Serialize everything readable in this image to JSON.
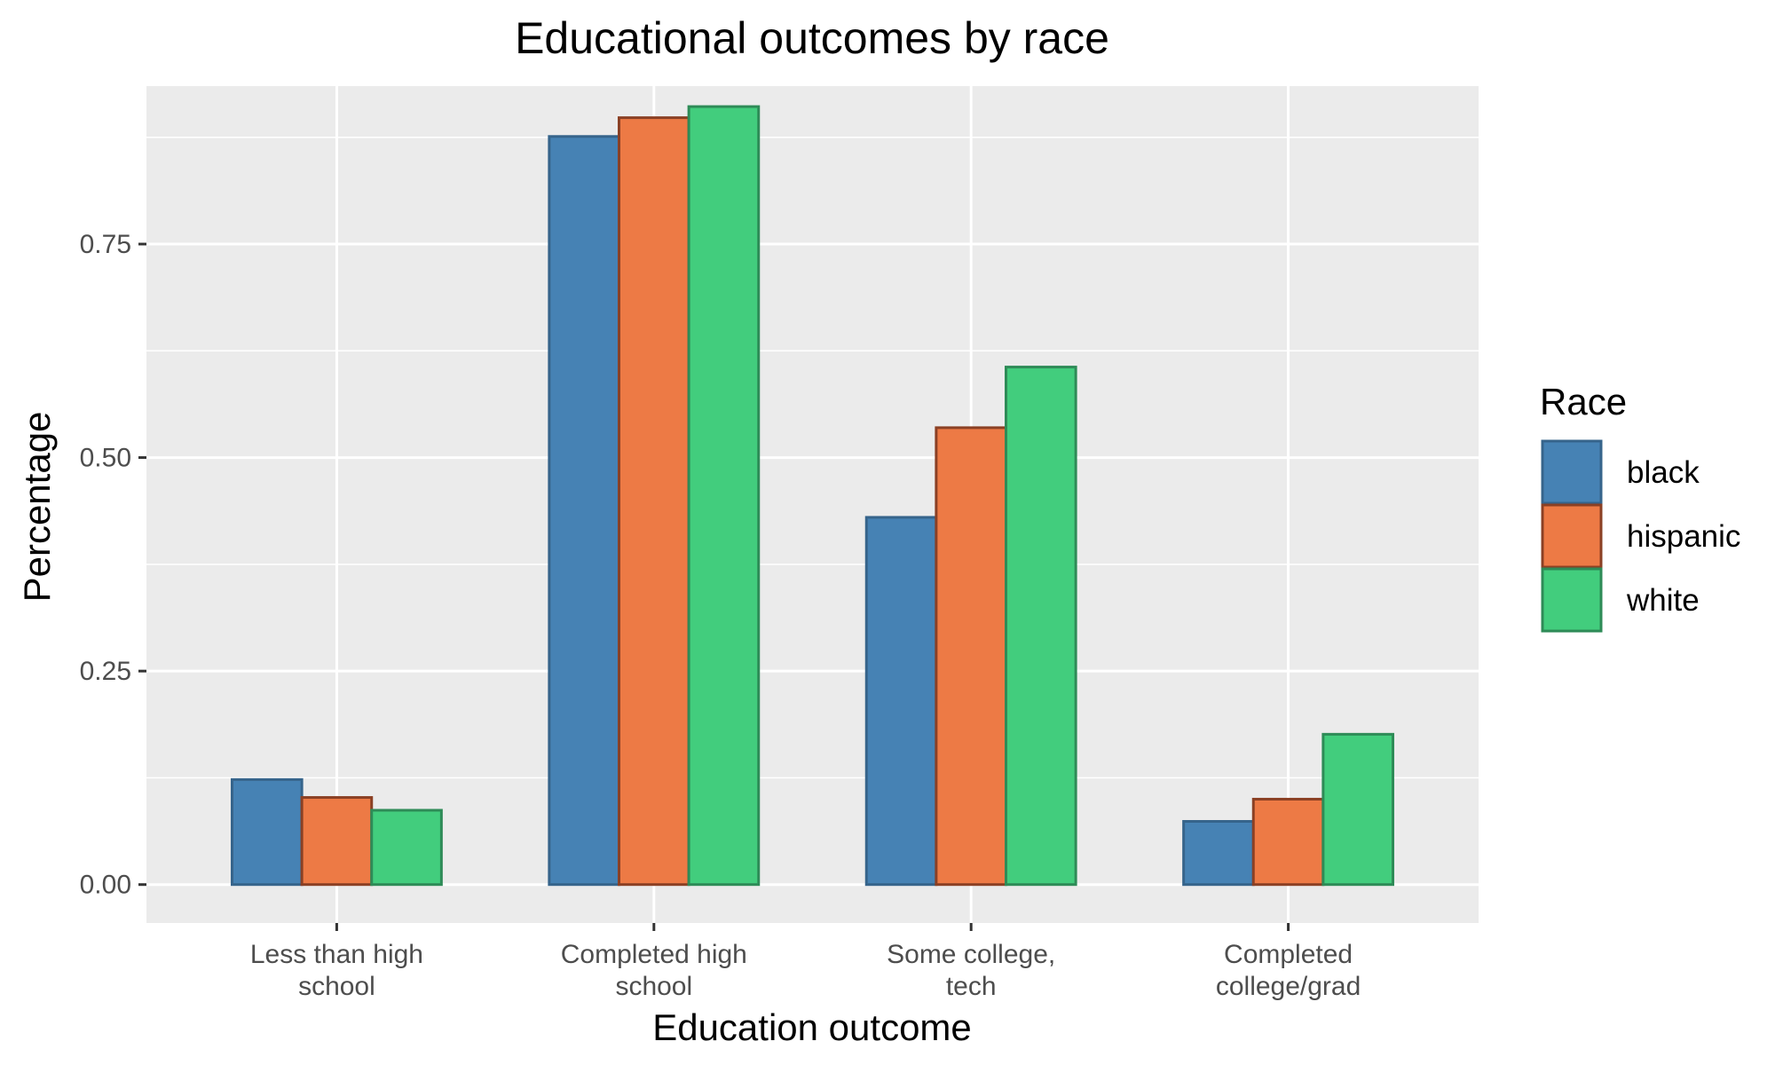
{
  "chart_data": {
    "type": "bar",
    "title": "Educational outcomes by race",
    "xlabel": "Education outcome",
    "ylabel": "Percentage",
    "categories": [
      [
        "Less than high",
        "school"
      ],
      [
        "Completed high",
        "school"
      ],
      [
        "Some college,",
        "tech"
      ],
      [
        "Completed",
        "college/grad"
      ]
    ],
    "ylim": [
      -0.045,
      0.935
    ],
    "y_ticks": [
      0,
      0.25,
      0.5,
      0.75
    ],
    "y_tick_labels": [
      "0.00",
      "0.25",
      "0.50",
      "0.75"
    ],
    "grid": true,
    "legend": {
      "title": "Race",
      "position": "right"
    },
    "series": [
      {
        "name": "black",
        "color": "#4682B4",
        "outline": "#36648B",
        "values": [
          0.123,
          0.876,
          0.43,
          0.074
        ]
      },
      {
        "name": "hispanic",
        "color": "#ED7A45",
        "outline": "#8B4024",
        "values": [
          0.102,
          0.898,
          0.535,
          0.1
        ]
      },
      {
        "name": "white",
        "color": "#42CD7D",
        "outline": "#2E8B57",
        "values": [
          0.087,
          0.911,
          0.606,
          0.176
        ]
      }
    ]
  }
}
